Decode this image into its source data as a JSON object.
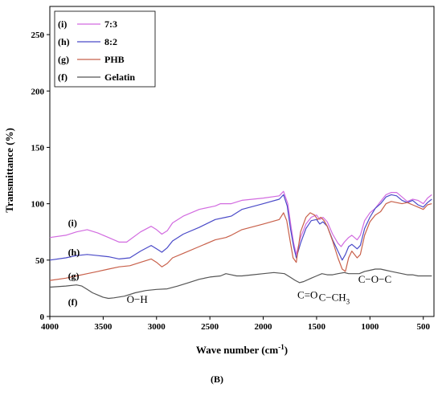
{
  "chart_data": {
    "type": "line",
    "panel_label": "(B)",
    "xlabel": "Wave number (cm",
    "xlabel_sup": "-1",
    "xlabel_close": ")",
    "ylabel": "Transmittance (%)",
    "xlim": [
      4000,
      400
    ],
    "ylim": [
      0,
      275
    ],
    "x_ticks": [
      4000,
      3500,
      3000,
      2500,
      2000,
      1500,
      1000,
      500
    ],
    "x_tick_labels": [
      "4000",
      "3500",
      "3000",
      "2500",
      "2000",
      "1500",
      "1000",
      "500"
    ],
    "y_ticks": [
      0,
      50,
      100,
      150,
      200,
      250
    ],
    "y_tick_labels": [
      "0",
      "50",
      "100",
      "150",
      "200",
      "250"
    ],
    "grid": false,
    "legend_placement": "top-left",
    "series": [
      {
        "id": "i",
        "name": "7:3",
        "tag": "(i)",
        "legend_tag": "(i)",
        "color": "#d26be0",
        "label_at": [
          3830,
          80
        ],
        "points": [
          [
            4000,
            70
          ],
          [
            3850,
            72
          ],
          [
            3750,
            75
          ],
          [
            3650,
            77
          ],
          [
            3550,
            74
          ],
          [
            3450,
            70
          ],
          [
            3350,
            66
          ],
          [
            3280,
            66
          ],
          [
            3150,
            75
          ],
          [
            3050,
            80
          ],
          [
            3000,
            77
          ],
          [
            2950,
            73
          ],
          [
            2900,
            76
          ],
          [
            2850,
            83
          ],
          [
            2750,
            89
          ],
          [
            2600,
            95
          ],
          [
            2450,
            98
          ],
          [
            2400,
            100
          ],
          [
            2300,
            100
          ],
          [
            2200,
            103
          ],
          [
            2000,
            105
          ],
          [
            1850,
            107
          ],
          [
            1810,
            111
          ],
          [
            1770,
            100
          ],
          [
            1740,
            80
          ],
          [
            1715,
            65
          ],
          [
            1690,
            55
          ],
          [
            1650,
            70
          ],
          [
            1600,
            82
          ],
          [
            1550,
            88
          ],
          [
            1500,
            90
          ],
          [
            1470,
            86
          ],
          [
            1440,
            88
          ],
          [
            1400,
            84
          ],
          [
            1350,
            73
          ],
          [
            1300,
            65
          ],
          [
            1270,
            62
          ],
          [
            1240,
            66
          ],
          [
            1200,
            70
          ],
          [
            1170,
            72
          ],
          [
            1120,
            68
          ],
          [
            1090,
            72
          ],
          [
            1050,
            85
          ],
          [
            1000,
            92
          ],
          [
            950,
            96
          ],
          [
            900,
            102
          ],
          [
            850,
            108
          ],
          [
            800,
            110
          ],
          [
            750,
            110
          ],
          [
            700,
            106
          ],
          [
            650,
            102
          ],
          [
            600,
            104
          ],
          [
            550,
            103
          ],
          [
            500,
            100
          ],
          [
            460,
            105
          ],
          [
            420,
            108
          ]
        ]
      },
      {
        "id": "h",
        "name": "8:2",
        "tag": "(h)",
        "legend_tag": "(h)",
        "color": "#4a4ac8",
        "label_at": [
          3830,
          54
        ],
        "points": [
          [
            4000,
            50
          ],
          [
            3850,
            52
          ],
          [
            3750,
            54
          ],
          [
            3650,
            55
          ],
          [
            3550,
            54
          ],
          [
            3450,
            53
          ],
          [
            3350,
            51
          ],
          [
            3250,
            52
          ],
          [
            3150,
            58
          ],
          [
            3050,
            63
          ],
          [
            3000,
            60
          ],
          [
            2950,
            57
          ],
          [
            2900,
            61
          ],
          [
            2850,
            67
          ],
          [
            2750,
            73
          ],
          [
            2600,
            79
          ],
          [
            2450,
            86
          ],
          [
            2350,
            88
          ],
          [
            2300,
            89
          ],
          [
            2200,
            95
          ],
          [
            2000,
            100
          ],
          [
            1850,
            104
          ],
          [
            1810,
            108
          ],
          [
            1775,
            98
          ],
          [
            1745,
            78
          ],
          [
            1715,
            62
          ],
          [
            1690,
            52
          ],
          [
            1650,
            65
          ],
          [
            1600,
            78
          ],
          [
            1550,
            85
          ],
          [
            1500,
            86
          ],
          [
            1470,
            82
          ],
          [
            1440,
            84
          ],
          [
            1400,
            80
          ],
          [
            1350,
            68
          ],
          [
            1300,
            58
          ],
          [
            1260,
            50
          ],
          [
            1230,
            55
          ],
          [
            1200,
            62
          ],
          [
            1170,
            64
          ],
          [
            1120,
            60
          ],
          [
            1090,
            63
          ],
          [
            1050,
            78
          ],
          [
            1000,
            88
          ],
          [
            950,
            96
          ],
          [
            900,
            100
          ],
          [
            850,
            106
          ],
          [
            800,
            108
          ],
          [
            750,
            107
          ],
          [
            700,
            103
          ],
          [
            650,
            101
          ],
          [
            600,
            103
          ],
          [
            550,
            99
          ],
          [
            500,
            97
          ],
          [
            460,
            101
          ],
          [
            420,
            104
          ]
        ]
      },
      {
        "id": "g",
        "name": "PHB",
        "tag": "(g)",
        "legend_tag": "(g)",
        "color": "#c8604a",
        "label_at": [
          3830,
          33
        ],
        "points": [
          [
            4000,
            32
          ],
          [
            3850,
            34
          ],
          [
            3750,
            36
          ],
          [
            3650,
            38
          ],
          [
            3550,
            40
          ],
          [
            3450,
            42
          ],
          [
            3350,
            44
          ],
          [
            3250,
            45
          ],
          [
            3150,
            48
          ],
          [
            3050,
            51
          ],
          [
            3000,
            48
          ],
          [
            2950,
            44
          ],
          [
            2900,
            47
          ],
          [
            2850,
            52
          ],
          [
            2750,
            56
          ],
          [
            2600,
            62
          ],
          [
            2450,
            68
          ],
          [
            2350,
            70
          ],
          [
            2300,
            72
          ],
          [
            2200,
            77
          ],
          [
            2000,
            82
          ],
          [
            1850,
            86
          ],
          [
            1810,
            92
          ],
          [
            1780,
            85
          ],
          [
            1750,
            68
          ],
          [
            1720,
            52
          ],
          [
            1690,
            48
          ],
          [
            1650,
            75
          ],
          [
            1600,
            88
          ],
          [
            1560,
            92
          ],
          [
            1520,
            90
          ],
          [
            1490,
            86
          ],
          [
            1460,
            88
          ],
          [
            1430,
            85
          ],
          [
            1400,
            80
          ],
          [
            1350,
            67
          ],
          [
            1300,
            52
          ],
          [
            1260,
            42
          ],
          [
            1230,
            40
          ],
          [
            1200,
            52
          ],
          [
            1170,
            58
          ],
          [
            1120,
            52
          ],
          [
            1090,
            55
          ],
          [
            1050,
            72
          ],
          [
            1000,
            84
          ],
          [
            950,
            90
          ],
          [
            900,
            93
          ],
          [
            850,
            100
          ],
          [
            800,
            102
          ],
          [
            750,
            101
          ],
          [
            700,
            100
          ],
          [
            650,
            101
          ],
          [
            600,
            99
          ],
          [
            550,
            97
          ],
          [
            500,
            95
          ],
          [
            460,
            99
          ],
          [
            420,
            100
          ]
        ]
      },
      {
        "id": "f",
        "name": "Gelatin",
        "tag": "(f)",
        "legend_tag": "(f)",
        "color": "#555555",
        "label_at": [
          3830,
          10
        ],
        "points": [
          [
            4000,
            26
          ],
          [
            3850,
            27
          ],
          [
            3750,
            28
          ],
          [
            3700,
            27
          ],
          [
            3650,
            24
          ],
          [
            3600,
            21
          ],
          [
            3550,
            19
          ],
          [
            3500,
            17
          ],
          [
            3450,
            16
          ],
          [
            3400,
            16.5
          ],
          [
            3300,
            18
          ],
          [
            3200,
            21
          ],
          [
            3100,
            23
          ],
          [
            3000,
            24
          ],
          [
            2900,
            24.5
          ],
          [
            2800,
            27
          ],
          [
            2700,
            30
          ],
          [
            2600,
            33
          ],
          [
            2500,
            35
          ],
          [
            2400,
            36
          ],
          [
            2350,
            38
          ],
          [
            2300,
            37
          ],
          [
            2250,
            36
          ],
          [
            2200,
            36
          ],
          [
            2100,
            37
          ],
          [
            2000,
            38
          ],
          [
            1900,
            39
          ],
          [
            1800,
            38
          ],
          [
            1750,
            35
          ],
          [
            1700,
            32
          ],
          [
            1660,
            30
          ],
          [
            1620,
            31
          ],
          [
            1550,
            34
          ],
          [
            1500,
            36
          ],
          [
            1450,
            38
          ],
          [
            1400,
            37
          ],
          [
            1350,
            37
          ],
          [
            1300,
            38
          ],
          [
            1240,
            39
          ],
          [
            1200,
            38
          ],
          [
            1150,
            38
          ],
          [
            1100,
            38
          ],
          [
            1050,
            40
          ],
          [
            1000,
            41
          ],
          [
            950,
            42
          ],
          [
            900,
            42
          ],
          [
            850,
            41
          ],
          [
            800,
            40
          ],
          [
            750,
            39
          ],
          [
            700,
            38
          ],
          [
            650,
            37
          ],
          [
            600,
            37
          ],
          [
            550,
            36
          ],
          [
            500,
            36
          ],
          [
            450,
            36
          ],
          [
            420,
            36
          ]
        ]
      }
    ],
    "annotations": [
      {
        "text": "O−H",
        "x": 3280,
        "y": 12,
        "sub": ""
      },
      {
        "text": "C=O",
        "x": 1680,
        "y": 16,
        "sub": ""
      },
      {
        "text": "C−CH",
        "x": 1480,
        "y": 14,
        "sub": "3"
      },
      {
        "text": "C−O−C",
        "x": 1110,
        "y": 30,
        "sub": ""
      }
    ]
  }
}
